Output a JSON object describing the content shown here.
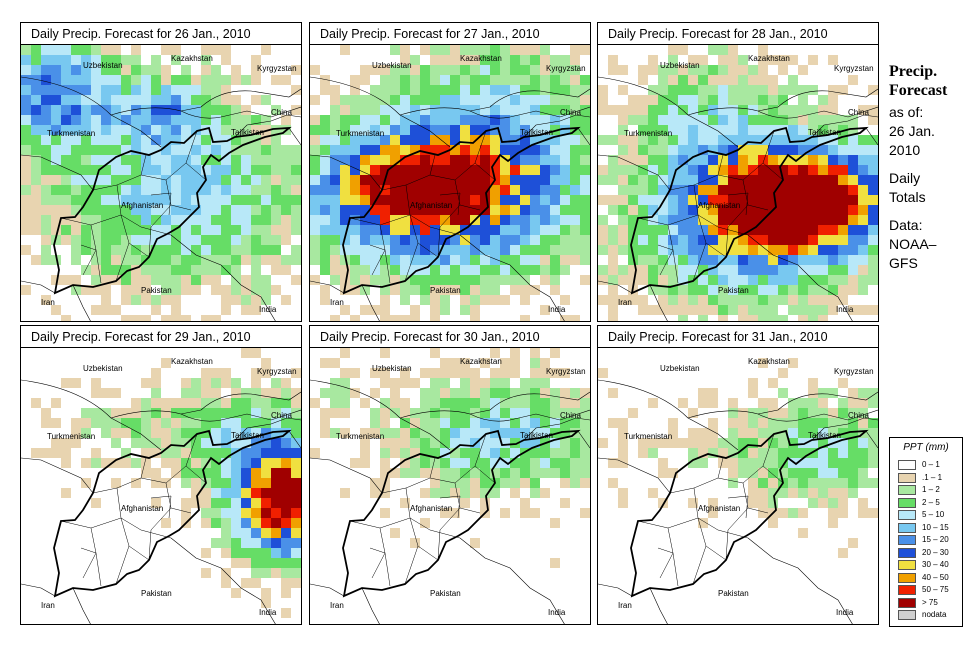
{
  "panels": [
    {
      "title": "Daily Precip. Forecast for  26 Jan., 2010",
      "day": 0
    },
    {
      "title": "Daily Precip. Forecast for  27 Jan., 2010",
      "day": 1
    },
    {
      "title": "Daily Precip. Forecast for  28 Jan., 2010",
      "day": 2
    },
    {
      "title": "Daily Precip. Forecast for  29 Jan., 2010",
      "day": 3
    },
    {
      "title": "Daily Precip. Forecast for  30 Jan., 2010",
      "day": 4
    },
    {
      "title": "Daily Precip. Forecast for  31 Jan., 2010",
      "day": 5
    }
  ],
  "countries": [
    "Kazakhstan",
    "Uzbekistan",
    "Kyrgyzstan",
    "China",
    "Turkmenistan",
    "Tajikistan",
    "Afghanistan",
    "Iran",
    "Pakistan",
    "India"
  ],
  "side": {
    "title1": "Precip.",
    "title2": "Forecast",
    "asof": "as of:",
    "date1": "26 Jan.",
    "date2": "2010",
    "daily": "Daily",
    "totals": "Totals",
    "data": "Data:",
    "src1": "NOAA–",
    "src2": "GFS"
  },
  "legend": {
    "title": "PPT (mm)",
    "items": [
      {
        "label": "0 – 1",
        "color": "#ffffff"
      },
      {
        "label": ".1 – 1",
        "color": "#e8d4b0"
      },
      {
        "label": "1 – 2",
        "color": "#a8e8a0"
      },
      {
        "label": "2 – 5",
        "color": "#66dd66"
      },
      {
        "label": "5 – 10",
        "color": "#b8e8f8"
      },
      {
        "label": "10 – 15",
        "color": "#78c8f0"
      },
      {
        "label": "15 – 20",
        "color": "#4a90e8"
      },
      {
        "label": "20 – 30",
        "color": "#1e50d8"
      },
      {
        "label": "30 – 40",
        "color": "#f0e040"
      },
      {
        "label": "40 – 50",
        "color": "#f0a000"
      },
      {
        "label": "50 – 75",
        "color": "#f02000"
      },
      {
        "label": "> 75",
        "color": "#a00000"
      },
      {
        "label": "nodata",
        "color": "#d0d0d0"
      }
    ]
  }
}
